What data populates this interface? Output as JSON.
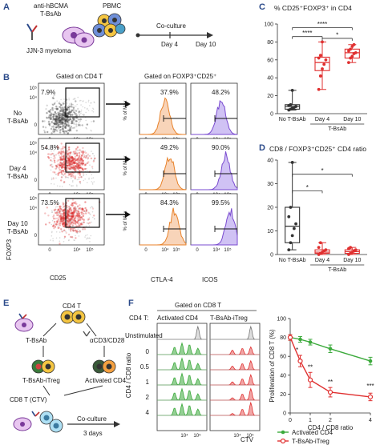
{
  "panels": {
    "a": {
      "label": "A",
      "antibody": "anti-hBCMA",
      "antibody2": "T-BsAb",
      "pbmc": "PBMC",
      "cells": "JJN-3 myeloma",
      "coculture": "Co-culture",
      "day4": "Day 4",
      "day10": "Day 10"
    },
    "b": {
      "label": "B",
      "gate_cd4": "Gated on CD4 T",
      "gate_foxp3": "Gated on FOXP3⁺CD25⁺",
      "rows": [
        {
          "name1": "No",
          "name2": "T-BsAb",
          "pct_gate": "7.9%",
          "pct_ctla4": "37.9%",
          "pct_icos": "48.2%"
        },
        {
          "name1": "Day 4",
          "name2": "T-BsAb",
          "pct_gate": "54.8%",
          "pct_ctla4": "49.2%",
          "pct_icos": "90.0%"
        },
        {
          "name1": "Day 10",
          "name2": "T-BsAb",
          "pct_gate": "73.5%",
          "pct_ctla4": "84.3%",
          "pct_icos": "99.5%"
        }
      ],
      "y_axis": "FOXP3",
      "x_axis": "CD25",
      "hist_y": "% of Max",
      "ctla4": "CTLA-4",
      "icos": "ICOS",
      "tick_104": "10⁴",
      "tick_105": "10⁵",
      "tick_0": "0"
    },
    "c": {
      "label": "C",
      "sig1": "****",
      "sig2": "****",
      "sig3": "*"
    },
    "d": {
      "label": "D",
      "sig1": "*",
      "sig2": "*"
    },
    "e": {
      "label": "E",
      "cd4t": "CD4 T",
      "tbsab": "T-BsAb",
      "acd3": "αCD3/CD28",
      "itreg": "T-BsAb-iTreg",
      "activated": "Activated CD4",
      "cd8": "CD8 T (CTV)",
      "coculture": "Co-culture",
      "days": "3 days"
    },
    "f": {
      "label": "F",
      "gate": "Gated on CD8 T",
      "cd4t": "CD4 T:",
      "col1": "Activated CD4",
      "col2": "T-BsAb-iTreg",
      "unstim": "Unstimulated",
      "ratio_axis": "CD4 / CD8 ratio",
      "ratios": [
        "0.5",
        "1",
        "2",
        "4"
      ],
      "ratio_zero": "0",
      "ctv": "CTV",
      "tick_104": "10⁴",
      "tick_105": "10⁵",
      "sig": [
        "*",
        "**",
        "**",
        "***"
      ],
      "legend_green": "Activated CD4",
      "legend_red": "T-BsAb-iTreg"
    }
  },
  "chart_data": [
    {
      "type": "box",
      "panel": "C",
      "title": "% CD25⁺FOXP3⁺ in CD4",
      "ylim": [
        0,
        100
      ],
      "yticks": [
        0,
        20,
        40,
        60,
        80,
        100
      ],
      "categories": [
        "No T-BsAb",
        "Day 4",
        "Day 10"
      ],
      "group_label": "T-BsAb",
      "colors": [
        "#333333",
        "#e03030",
        "#e03030"
      ],
      "boxes": [
        {
          "min": 4,
          "q1": 5,
          "median": 8,
          "q3": 10,
          "max": 26
        },
        {
          "min": 27,
          "q1": 48,
          "median": 57,
          "q3": 63,
          "max": 80
        },
        {
          "min": 57,
          "q1": 62,
          "median": 68,
          "q3": 72,
          "max": 77
        }
      ],
      "points": [
        [
          4,
          5,
          6,
          7,
          8,
          9,
          10,
          26
        ],
        [
          27,
          42,
          50,
          55,
          60,
          62,
          65,
          80
        ],
        [
          57,
          62,
          64,
          67,
          68,
          70,
          72,
          75,
          77
        ]
      ]
    },
    {
      "type": "box",
      "panel": "D",
      "title": "CD8 / FOXP3⁺CD25⁺ CD4 ratio",
      "ylim": [
        0,
        40
      ],
      "yticks": [
        0,
        10,
        20,
        30,
        40
      ],
      "categories": [
        "No T-BsAb",
        "Day 4",
        "Day 10"
      ],
      "group_label": "T-BsAb",
      "colors": [
        "#333333",
        "#e03030",
        "#e03030"
      ],
      "boxes": [
        {
          "min": 2,
          "q1": 5,
          "median": 12,
          "q3": 20,
          "max": 39
        },
        {
          "min": 0,
          "q1": 0.5,
          "median": 1,
          "q3": 2,
          "max": 5
        },
        {
          "min": 0,
          "q1": 0.5,
          "median": 1.2,
          "q3": 2,
          "max": 3
        }
      ],
      "points": [
        [
          2,
          5,
          8,
          11,
          13,
          16,
          20,
          39
        ],
        [
          0,
          0.5,
          1,
          1.5,
          2,
          3,
          5
        ],
        [
          0,
          0.5,
          1,
          1.5,
          2,
          2.5,
          3
        ]
      ]
    },
    {
      "type": "line",
      "panel": "F",
      "ylabel": "Proliferation of CD8 T (%)",
      "xlabel": "CD4 / CD8 ratio",
      "xlim": [
        0,
        4
      ],
      "xticks": [
        0,
        1,
        2,
        4
      ],
      "ylim": [
        0,
        100
      ],
      "yticks": [
        0,
        20,
        40,
        60,
        80,
        100
      ],
      "series": [
        {
          "name": "Activated CD4",
          "color": "#3caa3c",
          "x": [
            0,
            0.5,
            1,
            2,
            4
          ],
          "y": [
            80,
            78,
            75,
            68,
            55
          ],
          "err": [
            3,
            3,
            3,
            4,
            4
          ]
        },
        {
          "name": "T-BsAb-iTreg",
          "color": "#e03030",
          "x": [
            0,
            0.5,
            1,
            2,
            4
          ],
          "y": [
            80,
            55,
            35,
            22,
            17
          ],
          "err": [
            3,
            6,
            8,
            5,
            4
          ]
        }
      ]
    }
  ]
}
